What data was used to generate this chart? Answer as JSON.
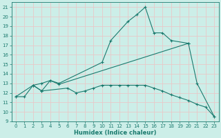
{
  "xlabel": "Humidex (Indice chaleur)",
  "bg_color": "#cceee8",
  "grid_color": "#e8c8c8",
  "line_color": "#1a7a6e",
  "xlim": [
    -0.5,
    23.5
  ],
  "ylim": [
    9,
    21.5
  ],
  "xticks": [
    0,
    1,
    2,
    3,
    4,
    5,
    6,
    7,
    8,
    9,
    10,
    11,
    12,
    13,
    14,
    15,
    16,
    17,
    18,
    19,
    20,
    21,
    22,
    23
  ],
  "yticks": [
    9,
    10,
    11,
    12,
    13,
    14,
    15,
    16,
    17,
    18,
    19,
    20,
    21
  ],
  "line1_x": [
    2,
    3,
    4,
    5,
    10,
    11,
    13,
    14,
    15,
    16,
    17,
    18,
    20
  ],
  "line1_y": [
    12.8,
    13.0,
    13.3,
    13.0,
    15.2,
    17.5,
    19.5,
    20.2,
    21.0,
    18.3,
    18.3,
    17.5,
    17.2
  ],
  "line2_x": [
    0,
    2,
    3,
    4,
    5,
    20,
    21,
    23
  ],
  "line2_y": [
    11.6,
    12.8,
    12.2,
    13.3,
    12.9,
    17.2,
    13.0,
    9.5
  ],
  "line3_x": [
    0,
    1,
    2,
    3,
    6,
    7,
    8,
    9,
    10,
    11,
    12,
    13,
    14,
    15,
    16,
    17,
    18,
    19,
    20,
    21,
    22,
    23
  ],
  "line3_y": [
    11.6,
    11.6,
    12.8,
    12.2,
    12.5,
    12.0,
    12.2,
    12.5,
    12.8,
    12.8,
    12.8,
    12.8,
    12.8,
    12.8,
    12.5,
    12.2,
    11.8,
    11.5,
    11.2,
    10.8,
    10.5,
    9.5
  ],
  "xlabel_fontsize": 6,
  "tick_fontsize": 5
}
